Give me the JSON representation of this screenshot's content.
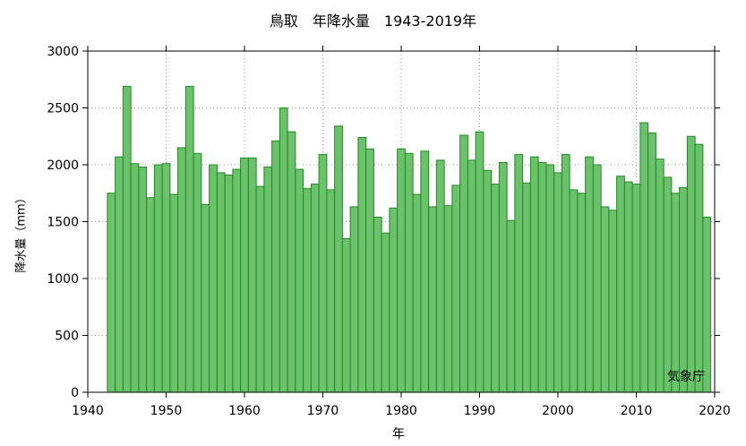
{
  "colors": {
    "bar_fill": "#6cc26c",
    "bar_stroke": "#1f8a1f",
    "grid": "#9a9a9a",
    "axis": "#000000"
  },
  "chart_data": {
    "type": "bar",
    "title": "鳥取　年降水量　1943-2019年",
    "xlabel": "年",
    "ylabel": "降水量（mm）",
    "source": "気象庁",
    "grid": true,
    "xlim": [
      1940,
      2020
    ],
    "ylim": [
      0,
      3000
    ],
    "xticks": [
      1940,
      1950,
      1960,
      1970,
      1980,
      1990,
      2000,
      2010,
      2020
    ],
    "yticks": [
      0,
      500,
      1000,
      1500,
      2000,
      2500,
      3000
    ],
    "categories": [
      1943,
      1944,
      1945,
      1946,
      1947,
      1948,
      1949,
      1950,
      1951,
      1952,
      1953,
      1954,
      1955,
      1956,
      1957,
      1958,
      1959,
      1960,
      1961,
      1962,
      1963,
      1964,
      1965,
      1966,
      1967,
      1968,
      1969,
      1970,
      1971,
      1972,
      1973,
      1974,
      1975,
      1976,
      1977,
      1978,
      1979,
      1980,
      1981,
      1982,
      1983,
      1984,
      1985,
      1986,
      1987,
      1988,
      1989,
      1990,
      1991,
      1992,
      1993,
      1994,
      1995,
      1996,
      1997,
      1998,
      1999,
      2000,
      2001,
      2002,
      2003,
      2004,
      2005,
      2006,
      2007,
      2008,
      2009,
      2010,
      2011,
      2012,
      2013,
      2014,
      2015,
      2016,
      2017,
      2018,
      2019
    ],
    "values": [
      1750,
      2070,
      2690,
      2010,
      1980,
      1710,
      2000,
      2010,
      1740,
      2150,
      2690,
      2100,
      1650,
      2000,
      1930,
      1910,
      1960,
      2060,
      2060,
      1810,
      1980,
      2210,
      2500,
      2290,
      1960,
      1790,
      1830,
      2090,
      1780,
      2340,
      1350,
      1630,
      2240,
      2140,
      1540,
      1400,
      1620,
      2140,
      2100,
      1740,
      2120,
      1630,
      2040,
      1640,
      1820,
      2260,
      2040,
      2290,
      1950,
      1830,
      2020,
      1510,
      2090,
      1840,
      2070,
      2020,
      2000,
      1930,
      2090,
      1780,
      1750,
      2070,
      2000,
      1630,
      1600,
      1900,
      1850,
      1830,
      2370,
      2280,
      2050,
      1890,
      1750,
      1800,
      2250,
      2180,
      1540
    ]
  }
}
